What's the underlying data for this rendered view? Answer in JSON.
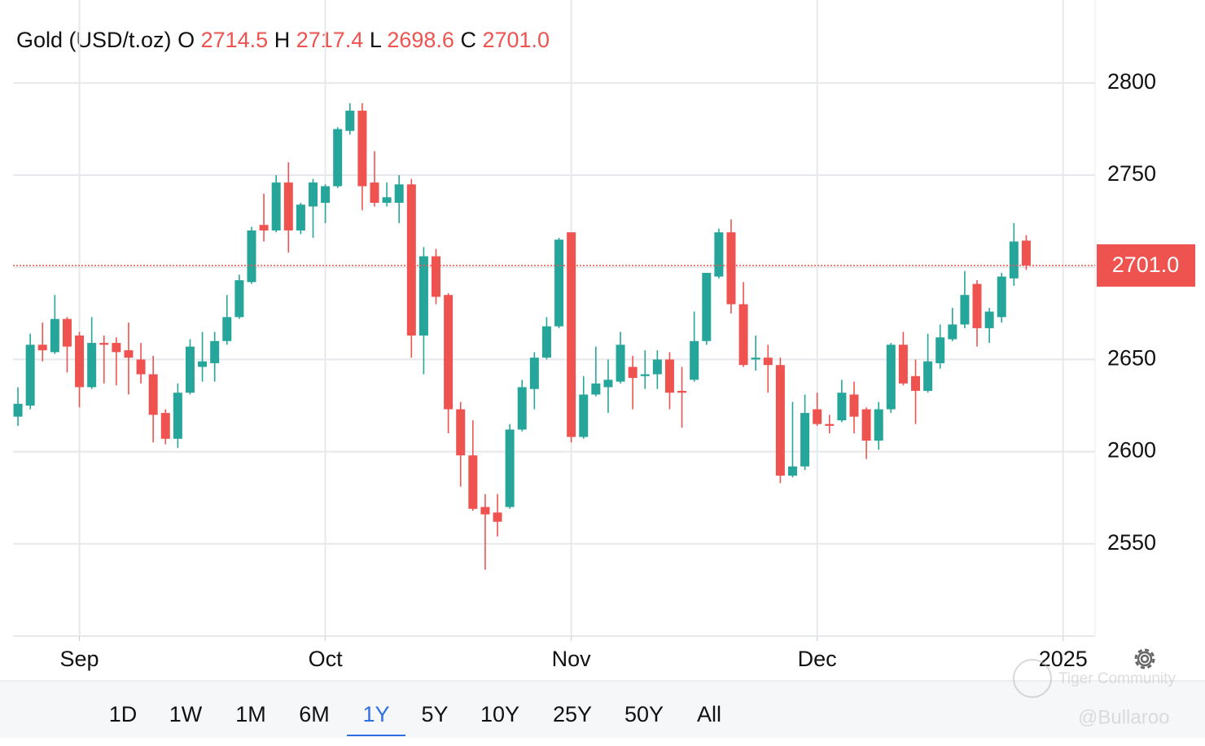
{
  "header": {
    "title": "Gold (USD/t.oz)",
    "fields": [
      {
        "key": "O",
        "value": "2714.5"
      },
      {
        "key": "H",
        "value": "2717.4"
      },
      {
        "key": "L",
        "value": "2698.6"
      },
      {
        "key": "C",
        "value": "2701.0"
      }
    ]
  },
  "chart_data": {
    "type": "candlestick",
    "up_color": "#26a69a",
    "down_color": "#ef5350",
    "grid": true,
    "xlim": [
      -0.4,
      87.6
    ],
    "xticks": [
      {
        "value": 5,
        "label": "Sep"
      },
      {
        "value": 25,
        "label": "Oct"
      },
      {
        "value": 45,
        "label": "Nov"
      },
      {
        "value": 65,
        "label": "Dec"
      },
      {
        "value": 85,
        "label": "2025"
      }
    ],
    "ylim": [
      2500,
      2845
    ],
    "yticks": [
      2550,
      2600,
      2650,
      2700,
      2750,
      2800
    ],
    "open": [
      2619,
      2625,
      2658,
      2654,
      2672,
      2663,
      2635,
      2659,
      2659,
      2655,
      2650,
      2642,
      2621,
      2607,
      2632,
      2646,
      2648,
      2660,
      2673,
      2692,
      2723,
      2720,
      2746,
      2720,
      2733,
      2735,
      2744,
      2774,
      2785,
      2746,
      2735,
      2735,
      2745,
      2663,
      2706,
      2685,
      2623,
      2598,
      2570,
      2567,
      2570,
      2612,
      2634,
      2651,
      2668,
      2719,
      2608,
      2631,
      2635,
      2638,
      2646,
      2641,
      2642,
      2650,
      2633,
      2639,
      2660,
      2695,
      2719,
      2680,
      2650,
      2651,
      2647,
      2587,
      2592,
      2623,
      2615,
      2617,
      2631,
      2623,
      2606,
      2623,
      2658,
      2641,
      2633,
      2648,
      2661,
      2669,
      2691,
      2667,
      2673,
      2694,
      2714.5
    ],
    "high": [
      2635,
      2664,
      2670,
      2685,
      2673,
      2665,
      2673,
      2663,
      2662,
      2670,
      2659,
      2652,
      2623,
      2637,
      2661,
      2665,
      2665,
      2685,
      2696,
      2722,
      2740,
      2750,
      2757,
      2735,
      2748,
      2745,
      2776,
      2789,
      2789,
      2763,
      2746,
      2750,
      2748,
      2711,
      2710,
      2686,
      2627,
      2617,
      2577,
      2577,
      2615,
      2639,
      2654,
      2673,
      2716,
      2719,
      2641,
      2657,
      2650,
      2665,
      2652,
      2655,
      2655,
      2654,
      2646,
      2676,
      2697,
      2721,
      2726,
      2692,
      2663,
      2658,
      2651,
      2627,
      2631,
      2632,
      2620,
      2639,
      2638,
      2624,
      2627,
      2659,
      2665,
      2650,
      2664,
      2669,
      2678,
      2698,
      2693,
      2678,
      2697,
      2724,
      2717.4
    ],
    "low": [
      2614,
      2623,
      2649,
      2653,
      2643,
      2624,
      2634,
      2637,
      2636,
      2631,
      2637,
      2605,
      2604,
      2602,
      2631,
      2638,
      2638,
      2658,
      2672,
      2691,
      2714,
      2719,
      2708,
      2718,
      2716,
      2724,
      2743,
      2772,
      2731,
      2733,
      2733,
      2724,
      2651,
      2642,
      2680,
      2610,
      2581,
      2568,
      2536,
      2554,
      2569,
      2611,
      2623,
      2650,
      2667,
      2605,
      2607,
      2630,
      2621,
      2637,
      2623,
      2634,
      2634,
      2623,
      2613,
      2638,
      2658,
      2694,
      2675,
      2646,
      2644,
      2632,
      2583,
      2586,
      2590,
      2614,
      2610,
      2616,
      2610,
      2596,
      2601,
      2621,
      2636,
      2615,
      2632,
      2645,
      2660,
      2667,
      2657,
      2659,
      2670,
      2690,
      2698.6
    ],
    "close": [
      2626,
      2658,
      2655,
      2672,
      2657,
      2635,
      2659,
      2658,
      2654,
      2651,
      2642,
      2620,
      2607,
      2632,
      2657,
      2649,
      2660,
      2673,
      2693,
      2720,
      2720,
      2746,
      2720,
      2734,
      2746,
      2744,
      2775,
      2785,
      2744,
      2735,
      2738,
      2745,
      2663,
      2706,
      2684,
      2623,
      2598,
      2569,
      2566,
      2562,
      2612,
      2635,
      2651,
      2668,
      2715,
      2608,
      2631,
      2637,
      2639,
      2658,
      2640,
      2642,
      2650,
      2632,
      2632,
      2660,
      2697,
      2719,
      2680,
      2647,
      2651,
      2647,
      2587,
      2592,
      2621,
      2615,
      2614,
      2632,
      2619,
      2606,
      2623,
      2658,
      2637,
      2633,
      2649,
      2662,
      2669,
      2685,
      2667,
      2676,
      2695,
      2714,
      2701
    ]
  },
  "ranges": {
    "items": [
      "1D",
      "1W",
      "1M",
      "6M",
      "1Y",
      "5Y",
      "10Y",
      "25Y",
      "50Y",
      "All"
    ],
    "selected": "1Y"
  },
  "watermark": {
    "brand": "Tiger Community",
    "user": "@Bullaroo"
  }
}
